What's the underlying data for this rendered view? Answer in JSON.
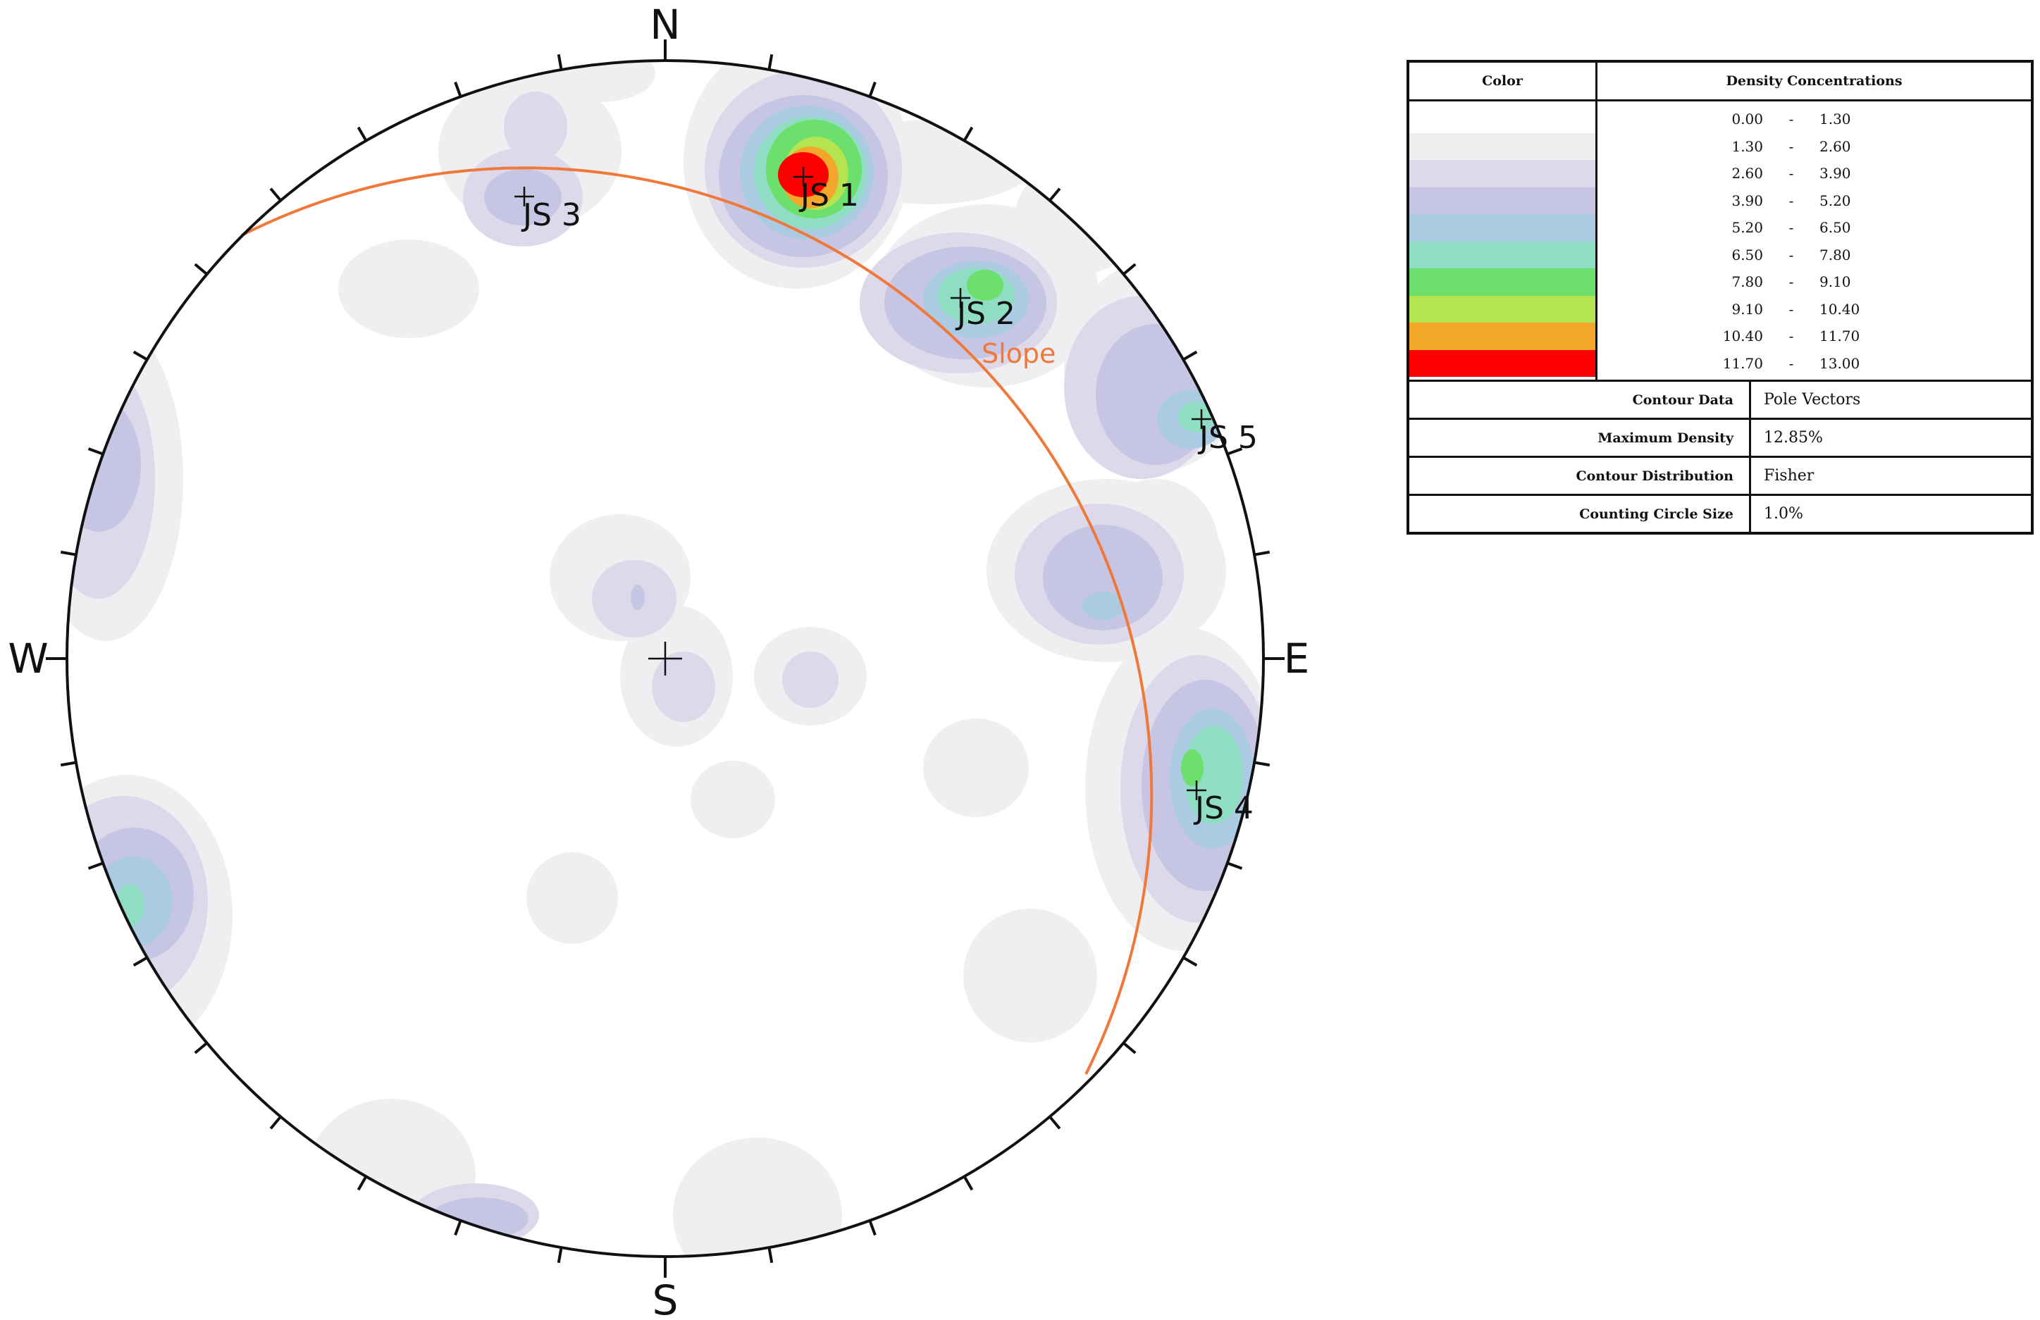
{
  "compass": {
    "n": "N",
    "s": "S",
    "e": "E",
    "w": "W"
  },
  "sets": [
    {
      "label": "JS 1"
    },
    {
      "label": "JS 2"
    },
    {
      "label": "JS 3"
    },
    {
      "label": "JS 4"
    },
    {
      "label": "JS 5"
    }
  ],
  "slope": {
    "label": "Slope",
    "color": "#f0783a"
  },
  "legend": {
    "header_color": "Color",
    "header_density": "Density Concentrations",
    "bins": [
      {
        "lo": "0.00",
        "hi": "1.30",
        "color": "#ffffff"
      },
      {
        "lo": "1.30",
        "hi": "2.60",
        "color": "#efeff1"
      },
      {
        "lo": "2.60",
        "hi": "3.90",
        "color": "#ddd8ea"
      },
      {
        "lo": "3.90",
        "hi": "5.20",
        "color": "#c6c6e4"
      },
      {
        "lo": "5.20",
        "hi": "6.50",
        "color": "#abcbe2"
      },
      {
        "lo": "6.50",
        "hi": "7.80",
        "color": "#8fddc2"
      },
      {
        "lo": "7.80",
        "hi": "9.10",
        "color": "#6ddf6d"
      },
      {
        "lo": "9.10",
        "hi": "10.40",
        "color": "#b4e551"
      },
      {
        "lo": "10.40",
        "hi": "11.70",
        "color": "#f2a62a"
      },
      {
        "lo": "11.70",
        "hi": "13.00",
        "color": "#ff0000"
      }
    ],
    "dash": "-",
    "info": [
      {
        "key": "Contour Data",
        "value": "Pole Vectors"
      },
      {
        "key": "Maximum Density",
        "value": "12.85%"
      },
      {
        "key": "Contour Distribution",
        "value": "Fisher"
      },
      {
        "key": "Counting Circle Size",
        "value": "1.0%"
      }
    ]
  }
}
